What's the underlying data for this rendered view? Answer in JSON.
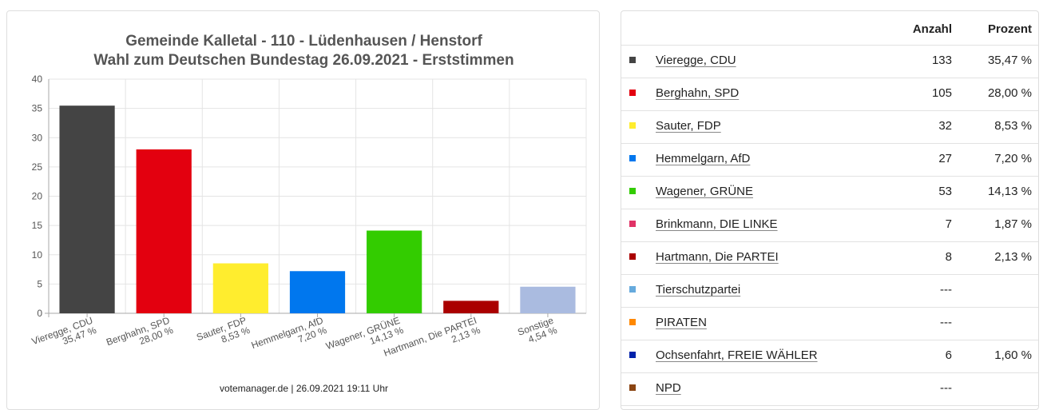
{
  "chart_data": {
    "type": "bar",
    "title": [
      "Gemeinde Kalletal - 110 - Lüdenhausen / Henstorf",
      "Wahl zum Deutschen Bundestag 26.09.2021  - Erststimmen"
    ],
    "categories": [
      "Vieregge, CDU",
      "Berghahn, SPD",
      "Sauter, FDP",
      "Hemmelgarn, AfD",
      "Wagener, GRÜNE",
      "Hartmann, Die PARTEI",
      "Sonstige"
    ],
    "values": [
      35.47,
      28.0,
      8.53,
      7.2,
      14.13,
      2.13,
      4.54
    ],
    "value_labels": [
      "35,47 %",
      "28,00 %",
      "8,53 %",
      "7,20 %",
      "14,13 %",
      "2,13 %",
      "4,54 %"
    ],
    "colors": [
      "#444444",
      "#e3000f",
      "#ffed2e",
      "#0077ee",
      "#33cc00",
      "#aa0000",
      "#aabbe0"
    ],
    "ylim": [
      0,
      40
    ],
    "yticks": [
      0,
      5,
      10,
      15,
      20,
      25,
      30,
      35,
      40
    ],
    "grid": true,
    "xlabel": "",
    "ylabel": ""
  },
  "footer": "votemanager.de | 26.09.2021 19:11 Uhr",
  "table": {
    "headers": {
      "anzahl": "Anzahl",
      "prozent": "Prozent"
    },
    "rows": [
      {
        "name": "Vieregge, CDU",
        "anzahl": "133",
        "prozent": "35,47 %",
        "color": "#444444"
      },
      {
        "name": "Berghahn, SPD",
        "anzahl": "105",
        "prozent": "28,00 %",
        "color": "#e3000f"
      },
      {
        "name": "Sauter, FDP",
        "anzahl": "32",
        "prozent": "8,53 %",
        "color": "#ffed2e"
      },
      {
        "name": "Hemmelgarn, AfD",
        "anzahl": "27",
        "prozent": "7,20 %",
        "color": "#0077ee"
      },
      {
        "name": "Wagener, GRÜNE",
        "anzahl": "53",
        "prozent": "14,13 %",
        "color": "#33cc00"
      },
      {
        "name": "Brinkmann, DIE LINKE",
        "anzahl": "7",
        "prozent": "1,87 %",
        "color": "#e03366"
      },
      {
        "name": "Hartmann, Die PARTEI",
        "anzahl": "8",
        "prozent": "2,13 %",
        "color": "#aa0000"
      },
      {
        "name": "Tierschutzpartei",
        "anzahl": "---",
        "prozent": "",
        "color": "#66aadd"
      },
      {
        "name": "PIRATEN",
        "anzahl": "---",
        "prozent": "",
        "color": "#ff8800"
      },
      {
        "name": "Ochsenfahrt, FREIE WÄHLER",
        "anzahl": "6",
        "prozent": "1,60 %",
        "color": "#0022aa"
      },
      {
        "name": "NPD",
        "anzahl": "---",
        "prozent": "",
        "color": "#8b4513"
      }
    ]
  }
}
